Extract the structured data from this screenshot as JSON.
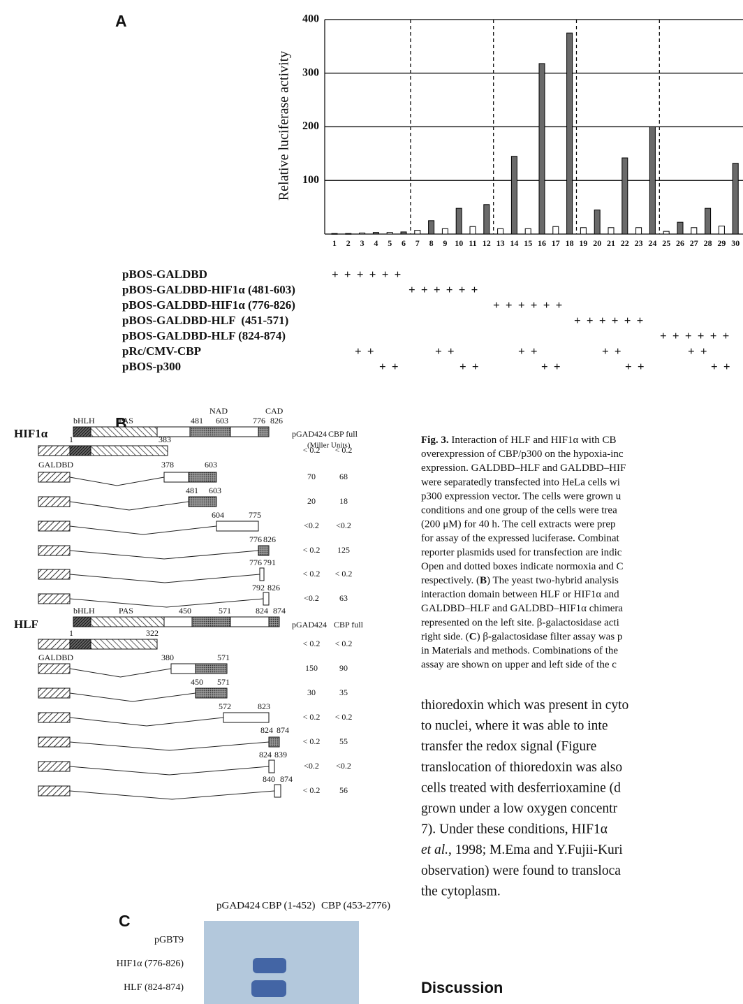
{
  "panel_a_label": "A",
  "chart_data": {
    "type": "bar",
    "y_label": "Relative luciferase activity",
    "categories": [
      "1",
      "2",
      "3",
      "4",
      "5",
      "6",
      "7",
      "8",
      "9",
      "10",
      "11",
      "12",
      "13",
      "14",
      "15",
      "16",
      "17",
      "18",
      "19",
      "20",
      "21",
      "22",
      "23",
      "24",
      "25",
      "26",
      "27",
      "28",
      "29",
      "30"
    ],
    "values": [
      1,
      1,
      2,
      3,
      3,
      4,
      7,
      25,
      10,
      48,
      14,
      55,
      10,
      145,
      10,
      318,
      14,
      375,
      12,
      45,
      12,
      142,
      12,
      200,
      5,
      22,
      12,
      48,
      15,
      132
    ],
    "colors": [
      "#ffffff",
      "#6a6a6a",
      "#ffffff",
      "#6a6a6a",
      "#ffffff",
      "#6a6a6a",
      "#ffffff",
      "#6a6a6a",
      "#ffffff",
      "#6a6a6a",
      "#ffffff",
      "#6a6a6a",
      "#ffffff",
      "#6a6a6a",
      "#ffffff",
      "#6a6a6a",
      "#ffffff",
      "#6a6a6a",
      "#ffffff",
      "#6a6a6a",
      "#ffffff",
      "#6a6a6a",
      "#ffffff",
      "#6a6a6a",
      "#ffffff",
      "#6a6a6a",
      "#ffffff",
      "#6a6a6a",
      "#ffffff",
      "#6a6a6a"
    ],
    "ylim": [
      0,
      400
    ],
    "yticks": [
      100,
      200,
      300,
      400
    ],
    "grid": true
  },
  "panel_a_rows": [
    {
      "label": "pBOS-GALDBD",
      "marks": [
        "+ + + + + +"
      ]
    },
    {
      "label": "pBOS-GALDBD-HIF1α (481-603)",
      "marks": [
        "+ + + + + +"
      ]
    },
    {
      "label": "pBOS-GALDBD-HIF1α (776-826)",
      "marks": [
        "+ + + + + +"
      ]
    },
    {
      "label": "pBOS-GALDBD-HLF  (451-571)",
      "marks": [
        "+ + + + + +"
      ]
    },
    {
      "label": "pBOS-GALDBD-HLF (824-874)",
      "marks": [
        "+ + + + + +"
      ]
    },
    {
      "label": "pRc/CMV-CBP",
      "marks": [
        "+ +",
        "+ +",
        "+ +",
        "+ +",
        "+ +"
      ]
    },
    {
      "label": "pBOS-p300",
      "marks": [
        "+ +",
        "+ +",
        "+ +",
        "+ +",
        "+ +"
      ]
    }
  ],
  "panel_b": {
    "label": "B",
    "hif": {
      "name": "HIF1α",
      "domains": [
        "bHLH",
        "PAS",
        "NAD",
        "CAD"
      ],
      "positions": [
        "481",
        "603",
        "776",
        "826"
      ],
      "col_headers": [
        "pGAD424",
        "CBP full"
      ],
      "units": "(Miller Units)",
      "rows": [
        {
          "numbers": [
            "1",
            "383"
          ],
          "values": [
            "< 0.2",
            "< 0.2"
          ]
        },
        {
          "tag": "GALDBD",
          "numbers": [
            "378",
            "603"
          ],
          "values": [
            "70",
            "68"
          ]
        },
        {
          "numbers": [
            "481",
            "603"
          ],
          "values": [
            "20",
            "18"
          ]
        },
        {
          "numbers": [
            "604",
            "775"
          ],
          "values": [
            "<0.2",
            "<0.2"
          ]
        },
        {
          "numbers": [
            "776",
            "826"
          ],
          "values": [
            "< 0.2",
            "125"
          ]
        },
        {
          "numbers": [
            "776",
            "791"
          ],
          "values": [
            "< 0.2",
            "< 0.2"
          ]
        },
        {
          "numbers": [
            "792",
            "826"
          ],
          "values": [
            "<0.2",
            "63"
          ]
        }
      ]
    },
    "hlf": {
      "name": "HLF",
      "domains": [
        "bHLH",
        "PAS"
      ],
      "positions": [
        "450",
        "571",
        "824",
        "874"
      ],
      "col_headers": [
        "pGAD424",
        "CBP full"
      ],
      "rows": [
        {
          "numbers": [
            "1",
            "322"
          ],
          "values": [
            "< 0.2",
            "< 0.2"
          ]
        },
        {
          "tag": "GALDBD",
          "numbers": [
            "380",
            "571"
          ],
          "values": [
            "150",
            "90"
          ]
        },
        {
          "numbers": [
            "450",
            "571"
          ],
          "values": [
            "30",
            "35"
          ]
        },
        {
          "numbers": [
            "572",
            "823"
          ],
          "values": [
            "< 0.2",
            "< 0.2"
          ]
        },
        {
          "numbers": [
            "824",
            "874"
          ],
          "values": [
            "< 0.2",
            "55"
          ]
        },
        {
          "numbers": [
            "824",
            "839"
          ],
          "values": [
            "<0.2",
            "<0.2"
          ]
        },
        {
          "numbers": [
            "840",
            "874"
          ],
          "values": [
            "< 0.2",
            "56"
          ]
        }
      ]
    }
  },
  "panel_c": {
    "label": "C",
    "columns": [
      "pGAD424",
      "CBP (1-452)",
      "CBP (453-2776)"
    ],
    "rows": [
      "pGBT9",
      "HIF1α (776-826)",
      "HLF (824-874)"
    ]
  },
  "caption": {
    "lines": [
      [
        {
          "text": "Fig. 3.",
          "bold": true
        },
        {
          "text": " Interaction of HLF and HIF1α with CB"
        }
      ],
      [
        {
          "text": "overexpression of CBP/p300 on the hypoxia-inc"
        }
      ],
      [
        {
          "text": "expression. GALDBD–HLF and GALDBD–HIF"
        }
      ],
      [
        {
          "text": "were separatedly transfected into HeLa cells wi"
        }
      ],
      [
        {
          "text": "p300 expression vector. The cells were grown u"
        }
      ],
      [
        {
          "text": "conditions and one group of the cells were trea"
        }
      ],
      [
        {
          "text": "(200 μM) for 40 h. The cell extracts were prep"
        }
      ],
      [
        {
          "text": "for assay of the expressed luciferase. Combinat"
        }
      ],
      [
        {
          "text": "reporter plasmids used for transfection are indic"
        }
      ],
      [
        {
          "text": "Open and dotted boxes indicate normoxia and C"
        }
      ],
      [
        {
          "text": "respectively. ("
        },
        {
          "text": "B",
          "bold": true
        },
        {
          "text": ") The yeast two-hybrid analysis"
        }
      ],
      [
        {
          "text": "interaction domain between HLF or HIF1α and"
        }
      ],
      [
        {
          "text": "GALDBD–HLF and GALDBD–HIF1α chimera"
        }
      ],
      [
        {
          "text": "represented on the left site. β-galactosidase acti"
        }
      ],
      [
        {
          "text": "right side. ("
        },
        {
          "text": "C",
          "bold": true
        },
        {
          "text": ") β-galactosidase filter assay was p"
        }
      ],
      [
        {
          "text": "in Materials and methods. Combinations of the"
        }
      ],
      [
        {
          "text": "assay are shown on upper and left side of the c"
        }
      ]
    ]
  },
  "body": {
    "lines": [
      [
        {
          "text": "thioredoxin which was present in cyto"
        }
      ],
      [
        {
          "text": "to nuclei, where it was able to inte"
        }
      ],
      [
        {
          "text": "transfer the redox signal (Figure"
        }
      ],
      [
        {
          "text": "translocation of thioredoxin was also"
        }
      ],
      [
        {
          "text": "cells treated with desferrioxamine (d"
        }
      ],
      [
        {
          "text": "grown under a low oxygen concentr"
        }
      ],
      [
        {
          "text": "7). Under these conditions, HIF1α"
        }
      ],
      [
        {
          "text": "et al.",
          "italic": true
        },
        {
          "text": ", 1998; M.Ema and Y.Fujii-Kuri"
        }
      ],
      [
        {
          "text": "observation) were found to transloca"
        }
      ],
      [
        {
          "text": "the cytoplasm."
        }
      ]
    ],
    "heading": "Discussion"
  }
}
